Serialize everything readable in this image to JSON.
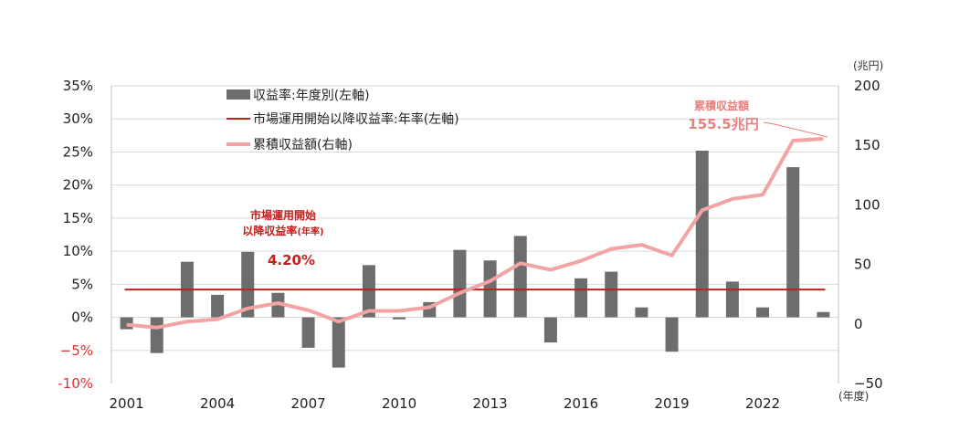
{
  "chart_data": {
    "type": "bar",
    "y_left": {
      "range": [
        -10,
        35
      ],
      "ticks": [
        35,
        30,
        25,
        20,
        15,
        10,
        5,
        0,
        -5,
        -10
      ],
      "tick_labels": [
        "35%",
        "30%",
        "25%",
        "20%",
        "15%",
        "10%",
        "5%",
        "0%",
        "−5%",
        "-10%"
      ],
      "negative_color": "#e03030"
    },
    "y_right": {
      "unit_label": "(兆円)",
      "range": [
        -50,
        200
      ],
      "ticks": [
        200,
        150,
        100,
        50,
        0,
        -50
      ],
      "tick_labels": [
        "200",
        "150",
        "100",
        "50",
        "0",
        "−50"
      ]
    },
    "x_axis": {
      "unit_label": "(年度)",
      "tick_labels": [
        "2001",
        "2004",
        "2007",
        "2010",
        "2013",
        "2016",
        "2019",
        "2022"
      ],
      "tick_years": [
        2001,
        2004,
        2007,
        2010,
        2013,
        2016,
        2019,
        2022
      ]
    },
    "grid": true,
    "legend": {
      "placement": "top-left",
      "entries": [
        {
          "label": "収益率:年度別(左軸)",
          "kind": "bar",
          "color": "#6d6d6d"
        },
        {
          "label": "市場運用開始以降収益率:年率(左軸)",
          "kind": "line",
          "color": "#c0201e"
        },
        {
          "label": "累積収益額(右軸)",
          "kind": "line",
          "color": "#f2a3a3"
        }
      ]
    },
    "years": [
      2001,
      2002,
      2003,
      2004,
      2005,
      2006,
      2007,
      2008,
      2009,
      2010,
      2011,
      2012,
      2013,
      2014,
      2015,
      2016,
      2017,
      2018,
      2019,
      2020,
      2021,
      2022,
      2023,
      2024
    ],
    "series": [
      {
        "name": "収益率:年度別(左軸)",
        "kind": "bar",
        "axis": "left",
        "color": "#6d6d6d",
        "values": [
          -1.8,
          -5.4,
          8.4,
          3.4,
          9.9,
          3.7,
          -4.6,
          -7.6,
          7.9,
          -0.3,
          2.3,
          10.2,
          8.6,
          12.3,
          -3.8,
          5.9,
          6.9,
          1.5,
          -5.2,
          25.2,
          5.4,
          1.5,
          22.7,
          0.8
        ]
      },
      {
        "name": "市場運用開始以降収益率:年率(左軸)",
        "kind": "hline",
        "axis": "left",
        "color": "#c0201e",
        "value": 4.2
      },
      {
        "name": "累積収益額(右軸)",
        "kind": "line",
        "axis": "right",
        "color": "#f2a3a3",
        "values": [
          -0.6,
          -3.0,
          2.0,
          4.0,
          13.0,
          17.5,
          11.5,
          2.0,
          11.0,
          11.0,
          14.0,
          26.0,
          36.0,
          51.0,
          45.5,
          53.0,
          63.0,
          66.5,
          57.5,
          95.5,
          105.0,
          108.5,
          154.0,
          155.5
        ]
      }
    ],
    "annotations": {
      "rate_title_line1": "市場運用開始",
      "rate_title_line2": "以降収益率",
      "rate_title_suffix": "(年率)",
      "rate_value": "4.20%",
      "rate_color": "#c0201e",
      "cum_title": "累積収益額",
      "cum_value": "155.5兆円",
      "cum_color": "#e8807e"
    }
  }
}
